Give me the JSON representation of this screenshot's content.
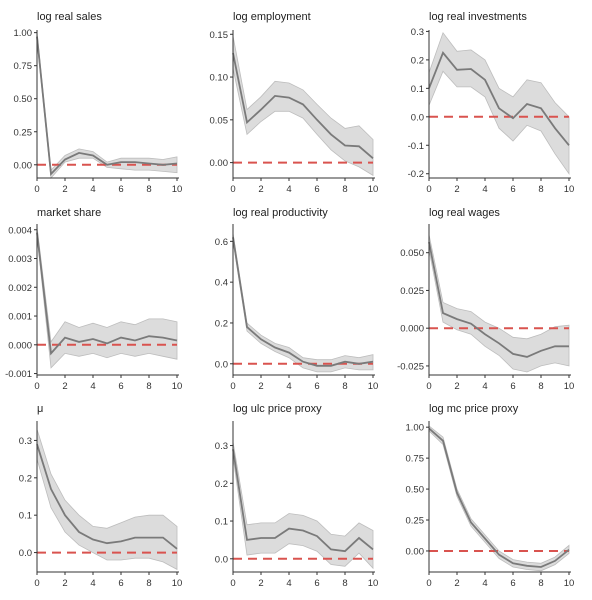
{
  "chart_data": [
    {
      "type": "line",
      "title": "log real sales",
      "x": [
        0,
        1,
        2,
        3,
        4,
        5,
        6,
        7,
        8,
        9,
        10
      ],
      "series": [
        {
          "values": [
            0.97,
            -0.07,
            0.04,
            0.09,
            0.07,
            0.0,
            0.02,
            0.02,
            0.01,
            0.0,
            0.01
          ]
        },
        {
          "values": [
            0.94,
            -0.1,
            0.02,
            0.05,
            0.05,
            -0.02,
            -0.03,
            -0.04,
            -0.04,
            -0.05,
            -0.06
          ]
        },
        {
          "values": [
            1.0,
            -0.04,
            0.07,
            0.12,
            0.1,
            0.02,
            0.05,
            0.05,
            0.05,
            0.04,
            0.06
          ]
        }
      ],
      "reference_line": 0,
      "xlim": [
        0,
        10
      ],
      "ylim": [
        -0.1,
        1.02
      ],
      "xticks": [
        0,
        2,
        4,
        6,
        8,
        10
      ],
      "yticks": [
        0.0,
        0.25,
        0.5,
        0.75,
        1.0
      ],
      "ytick_labels": [
        "0.00",
        "0.25",
        "0.50",
        "0.75",
        "1.00"
      ]
    },
    {
      "type": "line",
      "title": "log employment",
      "x": [
        0,
        1,
        2,
        3,
        4,
        5,
        6,
        7,
        8,
        9,
        10
      ],
      "series": [
        {
          "values": [
            0.128,
            0.047,
            0.062,
            0.078,
            0.076,
            0.068,
            0.05,
            0.033,
            0.02,
            0.019,
            0.005
          ]
        },
        {
          "values": [
            0.11,
            0.033,
            0.048,
            0.06,
            0.06,
            0.052,
            0.033,
            0.015,
            0.002,
            -0.005,
            -0.015
          ]
        },
        {
          "values": [
            0.148,
            0.062,
            0.077,
            0.095,
            0.093,
            0.085,
            0.068,
            0.052,
            0.04,
            0.043,
            0.027
          ]
        }
      ],
      "reference_line": 0,
      "xlim": [
        0,
        10
      ],
      "ylim": [
        -0.018,
        0.155
      ],
      "xticks": [
        0,
        2,
        4,
        6,
        8,
        10
      ],
      "yticks": [
        0.0,
        0.05,
        0.1,
        0.15
      ],
      "ytick_labels": [
        "0.00",
        "0.05",
        "0.10",
        "0.15"
      ]
    },
    {
      "type": "line",
      "title": "log real investments",
      "x": [
        0,
        1,
        2,
        3,
        4,
        5,
        6,
        7,
        8,
        9,
        10
      ],
      "series": [
        {
          "values": [
            0.1,
            0.225,
            0.165,
            0.168,
            0.13,
            0.03,
            -0.005,
            0.045,
            0.03,
            -0.04,
            -0.1
          ]
        },
        {
          "values": [
            0.04,
            0.16,
            0.105,
            0.105,
            0.07,
            -0.04,
            -0.085,
            -0.03,
            -0.05,
            -0.13,
            -0.2
          ]
        },
        {
          "values": [
            0.155,
            0.295,
            0.23,
            0.235,
            0.2,
            0.1,
            0.07,
            0.13,
            0.12,
            0.05,
            0.0
          ]
        }
      ],
      "reference_line": 0,
      "xlim": [
        0,
        10
      ],
      "ylim": [
        -0.215,
        0.305
      ],
      "xticks": [
        0,
        2,
        4,
        6,
        8,
        10
      ],
      "yticks": [
        -0.2,
        -0.1,
        0.0,
        0.1,
        0.2,
        0.3
      ],
      "ytick_labels": [
        "-0.2",
        "-0.1",
        "0.0",
        "0.1",
        "0.2",
        "0.3"
      ]
    },
    {
      "type": "line",
      "title": "market share",
      "x": [
        0,
        1,
        2,
        3,
        4,
        5,
        6,
        7,
        8,
        9,
        10
      ],
      "series": [
        {
          "values": [
            0.0039,
            -0.0003,
            0.00025,
            0.0001,
            0.0002,
            5e-05,
            0.00025,
            0.00015,
            0.0003,
            0.00025,
            0.00015
          ]
        },
        {
          "values": [
            0.0038,
            -0.0008,
            -0.0003,
            -0.0004,
            -0.0003,
            -0.00045,
            -0.0003,
            -0.0004,
            -0.0003,
            -0.0004,
            -0.0005
          ]
        },
        {
          "values": [
            0.0041,
            0.0001,
            0.0008,
            0.0006,
            0.00075,
            0.0006,
            0.0008,
            0.0007,
            0.0009,
            0.0009,
            0.0008
          ]
        }
      ],
      "reference_line": 0,
      "xlim": [
        0,
        10
      ],
      "ylim": [
        -0.00105,
        0.0042
      ],
      "xticks": [
        0,
        2,
        4,
        6,
        8,
        10
      ],
      "yticks": [
        -0.001,
        0.0,
        0.001,
        0.002,
        0.003,
        0.004
      ],
      "ytick_labels": [
        "-0.001",
        "0.000",
        "0.001",
        "0.002",
        "0.003",
        "0.004"
      ]
    },
    {
      "type": "line",
      "title": "log real productivity",
      "x": [
        0,
        1,
        2,
        3,
        4,
        5,
        6,
        7,
        8,
        9,
        10
      ],
      "series": [
        {
          "values": [
            0.62,
            0.18,
            0.12,
            0.08,
            0.055,
            0.01,
            -0.01,
            -0.01,
            0.01,
            0.0,
            0.01
          ]
        },
        {
          "values": [
            0.6,
            0.16,
            0.1,
            0.06,
            0.03,
            -0.02,
            -0.04,
            -0.04,
            -0.02,
            -0.03,
            -0.03
          ]
        },
        {
          "values": [
            0.64,
            0.2,
            0.14,
            0.1,
            0.08,
            0.03,
            0.02,
            0.02,
            0.04,
            0.03,
            0.045
          ]
        }
      ],
      "reference_line": 0,
      "xlim": [
        0,
        10
      ],
      "ylim": [
        -0.055,
        0.685
      ],
      "xticks": [
        0,
        2,
        4,
        6,
        8,
        10
      ],
      "yticks": [
        0.0,
        0.2,
        0.4,
        0.6
      ],
      "ytick_labels": [
        "0.0",
        "0.2",
        "0.4",
        "0.6"
      ]
    },
    {
      "type": "line",
      "title": "log real wages",
      "x": [
        0,
        1,
        2,
        3,
        4,
        5,
        6,
        7,
        8,
        9,
        10
      ],
      "series": [
        {
          "values": [
            0.057,
            0.01,
            0.006,
            0.003,
            -0.004,
            -0.01,
            -0.017,
            -0.019,
            -0.015,
            -0.012,
            -0.012
          ]
        },
        {
          "values": [
            0.052,
            0.004,
            -0.001,
            -0.004,
            -0.012,
            -0.018,
            -0.027,
            -0.029,
            -0.025,
            -0.023,
            -0.025
          ]
        },
        {
          "values": [
            0.062,
            0.017,
            0.013,
            0.011,
            0.004,
            0.0,
            -0.006,
            -0.007,
            -0.004,
            0.001,
            0.002
          ]
        }
      ],
      "reference_line": 0,
      "xlim": [
        0,
        10
      ],
      "ylim": [
        -0.031,
        0.069
      ],
      "xticks": [
        0,
        2,
        4,
        6,
        8,
        10
      ],
      "yticks": [
        -0.025,
        0.0,
        0.025,
        0.05
      ],
      "ytick_labels": [
        "-0.025",
        "0.000",
        "0.025",
        "0.050"
      ]
    },
    {
      "type": "line",
      "title": "μ",
      "x": [
        0,
        1,
        2,
        3,
        4,
        5,
        6,
        7,
        8,
        9,
        10
      ],
      "series": [
        {
          "values": [
            0.29,
            0.17,
            0.1,
            0.055,
            0.035,
            0.025,
            0.03,
            0.04,
            0.04,
            0.04,
            0.01
          ]
        },
        {
          "values": [
            0.25,
            0.12,
            0.055,
            0.02,
            0.0,
            -0.02,
            -0.02,
            -0.015,
            -0.015,
            -0.025,
            -0.045
          ]
        },
        {
          "values": [
            0.33,
            0.21,
            0.14,
            0.1,
            0.07,
            0.065,
            0.08,
            0.095,
            0.1,
            0.1,
            0.07
          ]
        }
      ],
      "reference_line": 0,
      "xlim": [
        0,
        10
      ],
      "ylim": [
        -0.052,
        0.352
      ],
      "xticks": [
        0,
        2,
        4,
        6,
        8,
        10
      ],
      "yticks": [
        0.0,
        0.1,
        0.2,
        0.3
      ],
      "ytick_labels": [
        "0.0",
        "0.1",
        "0.2",
        "0.3"
      ]
    },
    {
      "type": "line",
      "title": "log ulc price proxy",
      "x": [
        0,
        1,
        2,
        3,
        4,
        5,
        6,
        7,
        8,
        9,
        10
      ],
      "series": [
        {
          "values": [
            0.29,
            0.05,
            0.055,
            0.055,
            0.08,
            0.075,
            0.06,
            0.025,
            0.02,
            0.055,
            0.025
          ]
        },
        {
          "values": [
            0.27,
            0.01,
            0.015,
            0.015,
            0.04,
            0.035,
            0.02,
            -0.015,
            -0.02,
            0.015,
            -0.025
          ]
        },
        {
          "values": [
            0.31,
            0.09,
            0.095,
            0.095,
            0.12,
            0.115,
            0.1,
            0.065,
            0.06,
            0.095,
            0.075
          ]
        }
      ],
      "reference_line": 0,
      "xlim": [
        0,
        10
      ],
      "ylim": [
        -0.035,
        0.365
      ],
      "xticks": [
        0,
        2,
        4,
        6,
        8,
        10
      ],
      "yticks": [
        0.0,
        0.1,
        0.2,
        0.3
      ],
      "ytick_labels": [
        "0.0",
        "0.1",
        "0.2",
        "0.3"
      ]
    },
    {
      "type": "line",
      "title": "log mc price proxy",
      "x": [
        0,
        1,
        2,
        3,
        4,
        5,
        6,
        7,
        8,
        9,
        10
      ],
      "series": [
        {
          "values": [
            0.99,
            0.89,
            0.47,
            0.23,
            0.1,
            -0.03,
            -0.1,
            -0.12,
            -0.13,
            -0.08,
            0.01
          ]
        },
        {
          "values": [
            0.97,
            0.86,
            0.44,
            0.2,
            0.07,
            -0.06,
            -0.13,
            -0.15,
            -0.16,
            -0.11,
            -0.02
          ]
        },
        {
          "values": [
            1.01,
            0.92,
            0.5,
            0.26,
            0.13,
            0.0,
            -0.07,
            -0.09,
            -0.1,
            -0.05,
            0.045
          ]
        }
      ],
      "reference_line": 0,
      "xlim": [
        0,
        10
      ],
      "ylim": [
        -0.17,
        1.05
      ],
      "xticks": [
        0,
        2,
        4,
        6,
        8,
        10
      ],
      "yticks": [
        0.0,
        0.25,
        0.5,
        0.75,
        1.0
      ],
      "ytick_labels": [
        "0.00",
        "0.25",
        "0.50",
        "0.75",
        "1.00"
      ]
    }
  ]
}
